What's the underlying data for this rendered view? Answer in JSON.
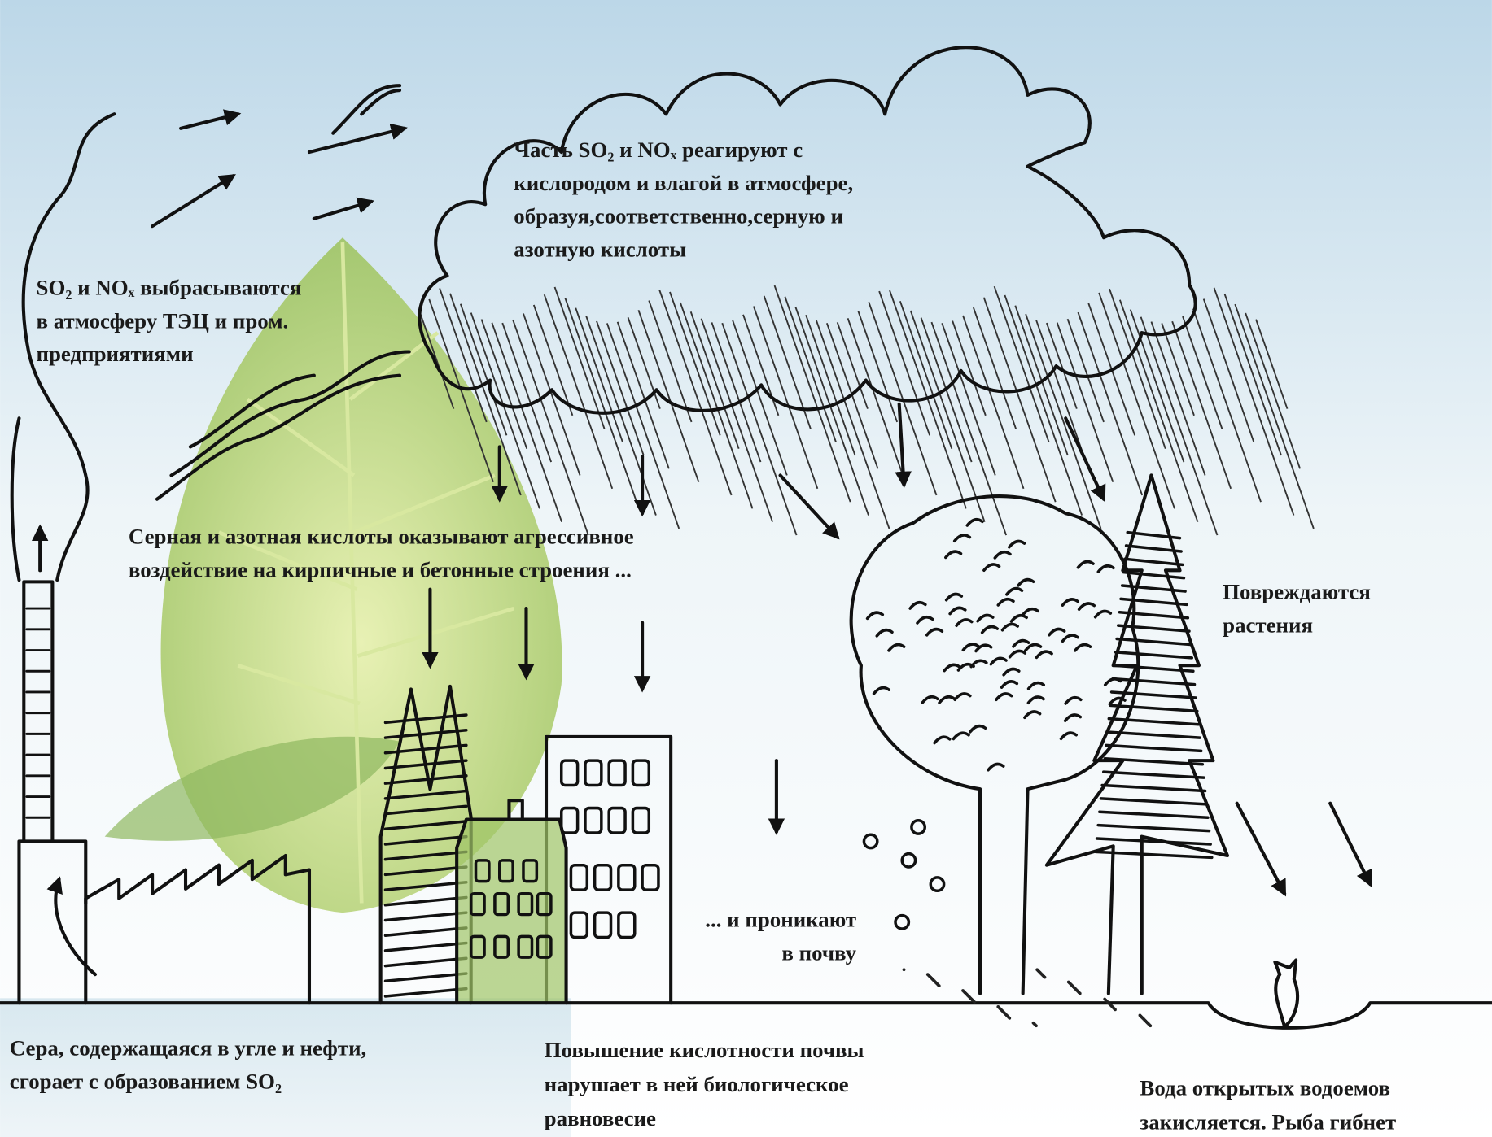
{
  "labels": [
    {
      "lines": [
        "Часть SO₂ и NOₓ реагируют с",
        "кислородом и влагой в атмосфере,",
        "образуя,соответственно,серную и",
        "азотную кислоты"
      ]
    },
    {
      "lines": [
        "SO₂ и NOₓ выбрасываются",
        "в атмосферу ТЭЦ и пром.",
        "предприятиями"
      ]
    },
    {
      "lines": [
        "Серная и азотная кислоты оказывают агрессивное",
        "воздействие на кирпичные и бетонные строения ..."
      ]
    },
    {
      "lines": [
        "Повреждаются",
        "растения"
      ]
    },
    {
      "lines": [
        "... и проникают",
        "в почву"
      ]
    },
    {
      "lines": [
        "Сера, содержащаяся в угле и нефти,",
        "сгорает с образованием SO₂"
      ]
    },
    {
      "lines": [
        "Повышение кислотности почвы",
        "нарушает в ней биологическое",
        "равновесие"
      ]
    },
    {
      "lines": [
        "Вода открытых водоемов",
        "закисляется. Рыба гибнет"
      ]
    }
  ]
}
